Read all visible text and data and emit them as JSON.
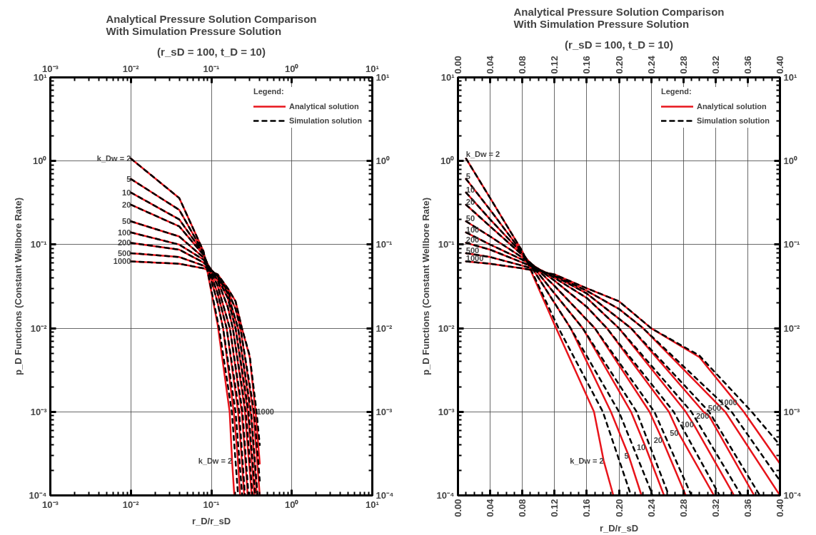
{
  "chart_data": [
    {
      "type": "line",
      "title": "Analytical Pressure Solution Comparison\nWith Simulation  Pressure Solution",
      "subtitle": "(r_sD = 100, t_D = 10)",
      "xlabel": "r_D/r_sD",
      "ylabel": "p_D Functions (Constant Wellbore Rate)",
      "legend_title": "Legend:",
      "legend": "top right",
      "grid": true,
      "log": "xy",
      "xlim": [
        0.001,
        10
      ],
      "xticks": [
        {
          "value": 0.001,
          "label": "10⁻³"
        },
        {
          "value": 0.01,
          "label": "10⁻²"
        },
        {
          "value": 0.1,
          "label": "10⁻¹"
        },
        {
          "value": 1,
          "label": "10⁰"
        },
        {
          "value": 10,
          "label": "10¹"
        }
      ],
      "ylim": [
        0.0001,
        10
      ],
      "yticks": [
        {
          "value": 0.0001,
          "label": "10⁻⁴"
        },
        {
          "value": 0.001,
          "label": "10⁻³"
        },
        {
          "value": 0.01,
          "label": "10⁻²"
        },
        {
          "value": 0.1,
          "label": "10⁻¹"
        },
        {
          "value": 1,
          "label": "10⁰"
        },
        {
          "value": 10,
          "label": "10¹"
        }
      ],
      "series": [
        {
          "name": "Analytical solution",
          "color": "#e8141b",
          "line_style": "solid",
          "x": [
            0.01,
            0.04,
            0.08,
            0.12,
            0.169,
            0.181,
            0.193
          ],
          "values": [
            1.07,
            0.36,
            0.083,
            0.011,
            0.001,
            0.00026,
            0.0001
          ]
        },
        {
          "color": "#e8141b",
          "line_style": "solid",
          "x": [
            0.01,
            0.04,
            0.08,
            0.12,
            0.14,
            0.19,
            0.212,
            0.228
          ],
          "values": [
            0.61,
            0.26,
            0.08,
            0.02,
            0.01,
            0.001,
            0.0003,
            0.0001
          ]
        },
        {
          "color": "#e8141b",
          "line_style": "solid",
          "x": [
            0.01,
            0.04,
            0.08,
            0.12,
            0.155,
            0.215,
            0.233,
            0.256
          ],
          "values": [
            0.42,
            0.2,
            0.078,
            0.026,
            0.01,
            0.001,
            0.00038,
            0.0001
          ]
        },
        {
          "color": "#e8141b",
          "line_style": "solid",
          "x": [
            0.01,
            0.04,
            0.08,
            0.12,
            0.17,
            0.238,
            0.254,
            0.283
          ],
          "values": [
            0.3,
            0.165,
            0.075,
            0.032,
            0.01,
            0.001,
            0.00046,
            0.0001
          ]
        },
        {
          "color": "#e8141b",
          "line_style": "solid",
          "x": [
            0.01,
            0.04,
            0.08,
            0.12,
            0.16,
            0.185,
            0.262,
            0.274,
            0.318
          ],
          "values": [
            0.19,
            0.125,
            0.07,
            0.037,
            0.018,
            0.01,
            0.001,
            0.00056,
            0.0001
          ]
        },
        {
          "color": "#e8141b",
          "line_style": "solid",
          "x": [
            0.01,
            0.04,
            0.08,
            0.12,
            0.16,
            0.2,
            0.283,
            0.293,
            0.343
          ],
          "values": [
            0.14,
            0.1,
            0.066,
            0.04,
            0.023,
            0.01,
            0.001,
            0.0007,
            0.0001
          ]
        },
        {
          "color": "#e8141b",
          "line_style": "solid",
          "x": [
            0.01,
            0.04,
            0.08,
            0.12,
            0.16,
            0.215,
            0.305,
            0.312,
            0.368
          ],
          "values": [
            0.105,
            0.087,
            0.061,
            0.042,
            0.026,
            0.01,
            0.001,
            0.00089,
            0.0001
          ]
        },
        {
          "color": "#e8141b",
          "line_style": "solid",
          "x": [
            0.01,
            0.04,
            0.08,
            0.12,
            0.16,
            0.2,
            0.23,
            0.332,
            0.4
          ],
          "values": [
            0.079,
            0.071,
            0.056,
            0.043,
            0.028,
            0.017,
            0.01,
            0.001,
            0.0001
          ]
        },
        {
          "color": "#e8141b",
          "line_style": "solid",
          "x": [
            0.01,
            0.04,
            0.08,
            0.12,
            0.16,
            0.2,
            0.24,
            0.3,
            0.355,
            0.4
          ],
          "values": [
            0.063,
            0.059,
            0.052,
            0.044,
            0.03,
            0.021,
            0.01,
            0.0045,
            0.001,
            0.00024
          ]
        },
        {
          "name": "Simulation solution",
          "color": "#000000",
          "line_style": "dashed",
          "x": [
            0.01,
            0.04,
            0.08,
            0.125,
            0.18,
            0.215
          ],
          "values": [
            1.07,
            0.36,
            0.083,
            0.01,
            0.001,
            0.0001
          ]
        },
        {
          "color": "#000000",
          "line_style": "dashed",
          "x": [
            0.01,
            0.04,
            0.08,
            0.12,
            0.14,
            0.2,
            0.242
          ],
          "values": [
            0.61,
            0.26,
            0.08,
            0.02,
            0.01,
            0.001,
            0.0001
          ]
        },
        {
          "color": "#000000",
          "line_style": "dashed",
          "x": [
            0.01,
            0.04,
            0.08,
            0.12,
            0.155,
            0.222,
            0.262
          ],
          "values": [
            0.42,
            0.2,
            0.078,
            0.026,
            0.01,
            0.001,
            0.0001
          ]
        },
        {
          "color": "#000000",
          "line_style": "dashed",
          "x": [
            0.01,
            0.04,
            0.08,
            0.12,
            0.17,
            0.244,
            0.29
          ],
          "values": [
            0.3,
            0.165,
            0.075,
            0.032,
            0.01,
            0.001,
            0.0001
          ]
        },
        {
          "color": "#000000",
          "line_style": "dashed",
          "x": [
            0.01,
            0.04,
            0.08,
            0.12,
            0.16,
            0.185,
            0.268,
            0.325
          ],
          "values": [
            0.19,
            0.125,
            0.07,
            0.037,
            0.018,
            0.01,
            0.001,
            0.0001
          ]
        },
        {
          "color": "#000000",
          "line_style": "dashed",
          "x": [
            0.01,
            0.04,
            0.08,
            0.12,
            0.16,
            0.2,
            0.29,
            0.352
          ],
          "values": [
            0.14,
            0.1,
            0.066,
            0.04,
            0.023,
            0.01,
            0.001,
            0.0001
          ]
        },
        {
          "color": "#000000",
          "line_style": "dashed",
          "x": [
            0.01,
            0.04,
            0.08,
            0.12,
            0.16,
            0.215,
            0.312,
            0.375
          ],
          "values": [
            0.105,
            0.087,
            0.061,
            0.042,
            0.026,
            0.01,
            0.001,
            0.0001
          ]
        },
        {
          "color": "#000000",
          "line_style": "dashed",
          "x": [
            0.01,
            0.04,
            0.08,
            0.12,
            0.16,
            0.2,
            0.23,
            0.34,
            0.4
          ],
          "values": [
            0.079,
            0.071,
            0.056,
            0.043,
            0.028,
            0.017,
            0.01,
            0.001,
            0.00015
          ]
        },
        {
          "color": "#000000",
          "line_style": "dashed",
          "x": [
            0.01,
            0.04,
            0.08,
            0.12,
            0.16,
            0.2,
            0.24,
            0.3,
            0.365,
            0.4
          ],
          "values": [
            0.063,
            0.059,
            0.052,
            0.044,
            0.03,
            0.021,
            0.01,
            0.0047,
            0.001,
            0.0004
          ]
        }
      ],
      "annotations": [
        {
          "text": "k_Dw = 2",
          "x": 0.01,
          "y": 1.07
        },
        {
          "text": "5",
          "x": 0.01,
          "y": 0.61
        },
        {
          "text": "10",
          "x": 0.01,
          "y": 0.42
        },
        {
          "text": "20",
          "x": 0.01,
          "y": 0.3
        },
        {
          "text": "50",
          "x": 0.01,
          "y": 0.19
        },
        {
          "text": "100",
          "x": 0.01,
          "y": 0.14
        },
        {
          "text": "200",
          "x": 0.01,
          "y": 0.105
        },
        {
          "text": "500",
          "x": 0.01,
          "y": 0.079
        },
        {
          "text": "1000",
          "x": 0.01,
          "y": 0.063
        },
        {
          "text": "k_Dw = 2",
          "x": 0.181,
          "y": 0.00026
        },
        {
          "text": "1000",
          "x": 0.365,
          "y": 0.001
        }
      ]
    },
    {
      "type": "line",
      "title": "Analytical Pressure Solution Comparison\nWith Simulation  Pressure Solution",
      "subtitle": "(r_sD = 100, t_D = 10)",
      "xlabel": "r_D/r_sD",
      "ylabel": "p_D Functions (Constant Wellbore Rate)",
      "legend_title": "Legend:",
      "legend": "top right",
      "grid": true,
      "log": "y",
      "xlim": [
        0,
        0.4
      ],
      "xticks": [
        {
          "value": 0,
          "label": "0.00"
        },
        0.04,
        0.08,
        0.12,
        0.16,
        {
          "value": 0.2,
          "label": "0.20"
        },
        0.24,
        0.28,
        0.32,
        0.36,
        {
          "value": 0.4,
          "label": "0.40"
        }
      ],
      "x2lim": [
        0,
        0.4
      ],
      "x2ticks": [
        {
          "value": 0,
          "label": "0.00"
        },
        0.04,
        0.08,
        0.12,
        0.16,
        {
          "value": 0.2,
          "label": "0.20"
        },
        0.24,
        0.28,
        0.32,
        0.36,
        {
          "value": 0.4,
          "label": "0.40"
        }
      ],
      "ylim": [
        0.0001,
        10
      ],
      "yticks": [
        {
          "value": 0.0001,
          "label": "10⁻⁴"
        },
        {
          "value": 0.001,
          "label": "10⁻³"
        },
        {
          "value": 0.01,
          "label": "10⁻²"
        },
        {
          "value": 0.1,
          "label": "10⁻¹"
        },
        {
          "value": 1,
          "label": "10⁰"
        },
        {
          "value": 10,
          "label": "10¹"
        }
      ],
      "series": [
        {
          "name": "Analytical solution",
          "color": "#e8141b",
          "line_style": "solid",
          "x": [
            0.01,
            0.04,
            0.08,
            0.12,
            0.169,
            0.181,
            0.193
          ],
          "values": [
            1.07,
            0.36,
            0.083,
            0.011,
            0.001,
            0.00026,
            0.0001
          ]
        },
        {
          "color": "#e8141b",
          "line_style": "solid",
          "x": [
            0.01,
            0.04,
            0.08,
            0.12,
            0.14,
            0.19,
            0.212,
            0.228
          ],
          "values": [
            0.61,
            0.26,
            0.08,
            0.02,
            0.01,
            0.001,
            0.0003,
            0.0001
          ]
        },
        {
          "color": "#e8141b",
          "line_style": "solid",
          "x": [
            0.01,
            0.04,
            0.08,
            0.12,
            0.155,
            0.215,
            0.233,
            0.256
          ],
          "values": [
            0.42,
            0.2,
            0.078,
            0.026,
            0.01,
            0.001,
            0.00038,
            0.0001
          ]
        },
        {
          "color": "#e8141b",
          "line_style": "solid",
          "x": [
            0.01,
            0.04,
            0.08,
            0.12,
            0.17,
            0.238,
            0.254,
            0.283
          ],
          "values": [
            0.3,
            0.165,
            0.075,
            0.032,
            0.01,
            0.001,
            0.00046,
            0.0001
          ]
        },
        {
          "color": "#e8141b",
          "line_style": "solid",
          "x": [
            0.01,
            0.04,
            0.08,
            0.12,
            0.16,
            0.185,
            0.262,
            0.274,
            0.318
          ],
          "values": [
            0.19,
            0.125,
            0.07,
            0.037,
            0.018,
            0.01,
            0.001,
            0.00056,
            0.0001
          ]
        },
        {
          "color": "#e8141b",
          "line_style": "solid",
          "x": [
            0.01,
            0.04,
            0.08,
            0.12,
            0.16,
            0.2,
            0.283,
            0.293,
            0.343
          ],
          "values": [
            0.14,
            0.1,
            0.066,
            0.04,
            0.023,
            0.01,
            0.001,
            0.0007,
            0.0001
          ]
        },
        {
          "color": "#e8141b",
          "line_style": "solid",
          "x": [
            0.01,
            0.04,
            0.08,
            0.12,
            0.16,
            0.215,
            0.305,
            0.312,
            0.368
          ],
          "values": [
            0.105,
            0.087,
            0.061,
            0.042,
            0.026,
            0.01,
            0.001,
            0.00089,
            0.0001
          ]
        },
        {
          "color": "#e8141b",
          "line_style": "solid",
          "x": [
            0.01,
            0.04,
            0.08,
            0.12,
            0.16,
            0.2,
            0.23,
            0.332,
            0.4
          ],
          "values": [
            0.079,
            0.071,
            0.056,
            0.043,
            0.028,
            0.017,
            0.01,
            0.001,
            0.0001
          ]
        },
        {
          "color": "#e8141b",
          "line_style": "solid",
          "x": [
            0.01,
            0.04,
            0.08,
            0.12,
            0.16,
            0.2,
            0.24,
            0.3,
            0.355,
            0.4
          ],
          "values": [
            0.063,
            0.059,
            0.052,
            0.044,
            0.03,
            0.021,
            0.01,
            0.0045,
            0.001,
            0.00024
          ]
        },
        {
          "name": "Simulation solution",
          "color": "#000000",
          "line_style": "dashed",
          "x": [
            0.01,
            0.04,
            0.08,
            0.125,
            0.18,
            0.215
          ],
          "values": [
            1.07,
            0.36,
            0.083,
            0.01,
            0.001,
            0.0001
          ]
        },
        {
          "color": "#000000",
          "line_style": "dashed",
          "x": [
            0.01,
            0.04,
            0.08,
            0.12,
            0.14,
            0.2,
            0.242
          ],
          "values": [
            0.61,
            0.26,
            0.08,
            0.02,
            0.01,
            0.001,
            0.0001
          ]
        },
        {
          "color": "#000000",
          "line_style": "dashed",
          "x": [
            0.01,
            0.04,
            0.08,
            0.12,
            0.155,
            0.222,
            0.262
          ],
          "values": [
            0.42,
            0.2,
            0.078,
            0.026,
            0.01,
            0.001,
            0.0001
          ]
        },
        {
          "color": "#000000",
          "line_style": "dashed",
          "x": [
            0.01,
            0.04,
            0.08,
            0.12,
            0.17,
            0.244,
            0.29
          ],
          "values": [
            0.3,
            0.165,
            0.075,
            0.032,
            0.01,
            0.001,
            0.0001
          ]
        },
        {
          "color": "#000000",
          "line_style": "dashed",
          "x": [
            0.01,
            0.04,
            0.08,
            0.12,
            0.16,
            0.185,
            0.268,
            0.325
          ],
          "values": [
            0.19,
            0.125,
            0.07,
            0.037,
            0.018,
            0.01,
            0.001,
            0.0001
          ]
        },
        {
          "color": "#000000",
          "line_style": "dashed",
          "x": [
            0.01,
            0.04,
            0.08,
            0.12,
            0.16,
            0.2,
            0.29,
            0.352
          ],
          "values": [
            0.14,
            0.1,
            0.066,
            0.04,
            0.023,
            0.01,
            0.001,
            0.0001
          ]
        },
        {
          "color": "#000000",
          "line_style": "dashed",
          "x": [
            0.01,
            0.04,
            0.08,
            0.12,
            0.16,
            0.215,
            0.312,
            0.375
          ],
          "values": [
            0.105,
            0.087,
            0.061,
            0.042,
            0.026,
            0.01,
            0.001,
            0.0001
          ]
        },
        {
          "color": "#000000",
          "line_style": "dashed",
          "x": [
            0.01,
            0.04,
            0.08,
            0.12,
            0.16,
            0.2,
            0.23,
            0.34,
            0.4
          ],
          "values": [
            0.079,
            0.071,
            0.056,
            0.043,
            0.028,
            0.017,
            0.01,
            0.001,
            0.00015
          ]
        },
        {
          "color": "#000000",
          "line_style": "dashed",
          "x": [
            0.01,
            0.04,
            0.08,
            0.12,
            0.16,
            0.2,
            0.24,
            0.3,
            0.365,
            0.4
          ],
          "values": [
            0.063,
            0.059,
            0.052,
            0.044,
            0.03,
            0.021,
            0.01,
            0.0047,
            0.001,
            0.0004
          ]
        }
      ],
      "annotations": [
        {
          "text": "k_Dw = 2",
          "x": 0.01,
          "y": 1.07
        },
        {
          "text": "5",
          "x": 0.01,
          "y": 0.61
        },
        {
          "text": "10",
          "x": 0.01,
          "y": 0.42
        },
        {
          "text": "20",
          "x": 0.01,
          "y": 0.3
        },
        {
          "text": "50",
          "x": 0.01,
          "y": 0.19
        },
        {
          "text": "100",
          "x": 0.01,
          "y": 0.14
        },
        {
          "text": "200",
          "x": 0.01,
          "y": 0.105
        },
        {
          "text": "500",
          "x": 0.01,
          "y": 0.079
        },
        {
          "text": "1000",
          "x": 0.01,
          "y": 0.063
        },
        {
          "text": "k_Dw = 2",
          "x": 0.181,
          "y": 0.00026
        },
        {
          "text": "5",
          "x": 0.212,
          "y": 0.0003
        },
        {
          "text": "10",
          "x": 0.233,
          "y": 0.00038
        },
        {
          "text": "20",
          "x": 0.254,
          "y": 0.00046
        },
        {
          "text": "50",
          "x": 0.274,
          "y": 0.00056
        },
        {
          "text": "100",
          "x": 0.293,
          "y": 0.0007
        },
        {
          "text": "200",
          "x": 0.312,
          "y": 0.00089
        },
        {
          "text": "500",
          "x": 0.327,
          "y": 0.0011
        },
        {
          "text": "1000",
          "x": 0.347,
          "y": 0.0013
        }
      ]
    }
  ]
}
